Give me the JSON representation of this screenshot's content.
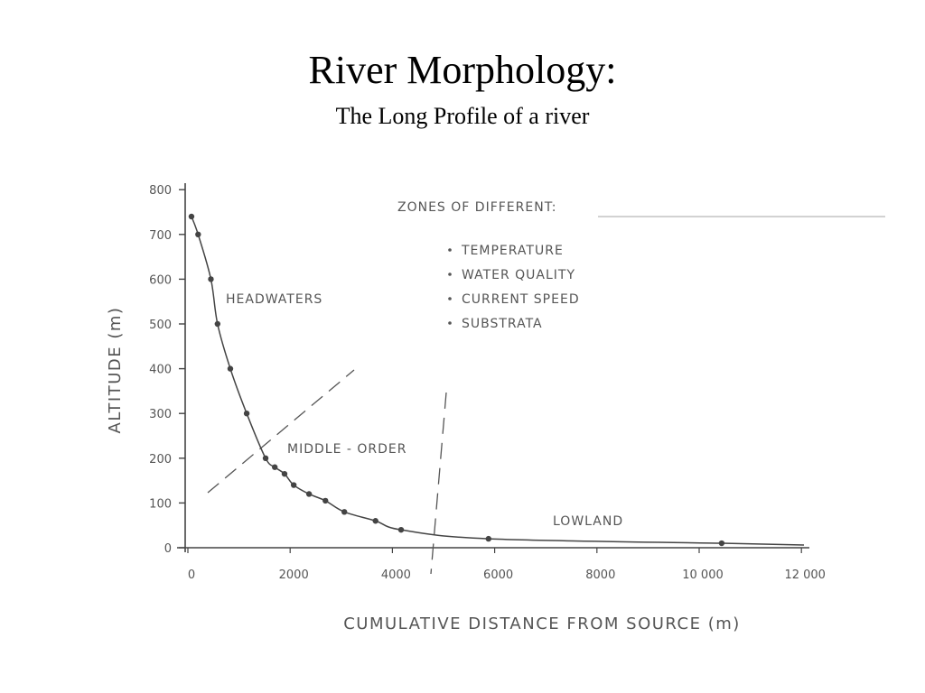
{
  "chart_data": {
    "type": "line",
    "title": "River Morphology:",
    "subtitle": "The Long Profile of a river",
    "xlabel": "CUMULATIVE DISTANCE FROM SOURCE (m)",
    "ylabel": "ALTITUDE (m)",
    "xlim": [
      0,
      12000
    ],
    "ylim": [
      0,
      800
    ],
    "grid": false,
    "xticks": [
      {
        "value": 0,
        "label": "0"
      },
      {
        "value": 2000,
        "label": "2000"
      },
      {
        "value": 4000,
        "label": "4000"
      },
      {
        "value": 6000,
        "label": "6000"
      },
      {
        "value": 8000,
        "label": "8000"
      },
      {
        "value": 10000,
        "label": "10 000"
      },
      {
        "value": 12000,
        "label": "12 000"
      }
    ],
    "yticks": [
      {
        "value": 0,
        "label": "0"
      },
      {
        "value": 100,
        "label": "100"
      },
      {
        "value": 200,
        "label": "200"
      },
      {
        "value": 300,
        "label": "300"
      },
      {
        "value": 400,
        "label": "400"
      },
      {
        "value": 500,
        "label": "500"
      },
      {
        "value": 600,
        "label": "600"
      },
      {
        "value": 700,
        "label": "700"
      },
      {
        "value": 800,
        "label": "800"
      }
    ],
    "x": [
      70,
      200,
      450,
      580,
      830,
      1150,
      1520,
      1700,
      1890,
      2070,
      2370,
      2690,
      3060,
      3670,
      4170,
      5880,
      10440
    ],
    "y": [
      740,
      700,
      600,
      500,
      400,
      300,
      200,
      180,
      165,
      140,
      120,
      105,
      80,
      60,
      40,
      20,
      10
    ],
    "zone_labels": {
      "headwaters": "HEADWATERS",
      "middle": "MIDDLE - ORDER",
      "lowland": "LOWLAND"
    },
    "zones_note": {
      "heading": "ZONES OF DIFFERENT:",
      "items": [
        "TEMPERATURE",
        "WATER QUALITY",
        "CURRENT SPEED",
        "SUBSTRATA"
      ]
    }
  }
}
